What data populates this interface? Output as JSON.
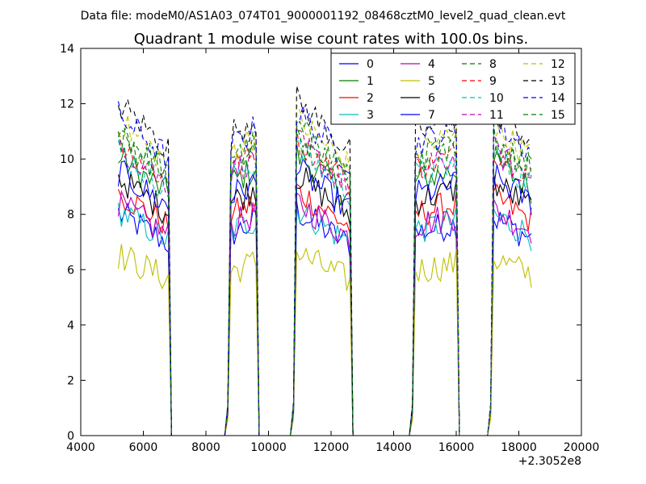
{
  "chart_data": {
    "type": "line",
    "suptitle": "Data file: modeM0/AS1A03_074T01_9000001192_08468cztM0_level2_quad_clean.evt",
    "title": "Quadrant 1 module wise count rates with 100.0s bins.",
    "xlabel": "",
    "ylabel": "",
    "x_offset_label": "+2.3052e8",
    "xlim": [
      4000,
      20000
    ],
    "ylim": [
      0,
      14
    ],
    "x_ticks": [
      4000,
      6000,
      8000,
      10000,
      12000,
      14000,
      16000,
      18000,
      20000
    ],
    "y_ticks": [
      0,
      2,
      4,
      6,
      8,
      10,
      12,
      14
    ],
    "grid": false,
    "legend_position": "top-right",
    "series": [
      {
        "name": "0",
        "color": "#0000ff",
        "dash": "solid",
        "base": 7.5
      },
      {
        "name": "1",
        "color": "#008000",
        "dash": "solid",
        "base": 9.4
      },
      {
        "name": "2",
        "color": "#ff0000",
        "dash": "solid",
        "base": 8.2
      },
      {
        "name": "3",
        "color": "#00bfbf",
        "dash": "solid",
        "base": 7.6
      },
      {
        "name": "4",
        "color": "#bf00bf",
        "dash": "solid",
        "base": 7.8
      },
      {
        "name": "5",
        "color": "#bfbf00",
        "dash": "solid",
        "base": 6.1
      },
      {
        "name": "6",
        "color": "#000000",
        "dash": "solid",
        "base": 8.7
      },
      {
        "name": "7",
        "color": "#0000ff",
        "dash": "solid",
        "base": 8.9
      },
      {
        "name": "8",
        "color": "#008000",
        "dash": "dashed",
        "base": 10.3
      },
      {
        "name": "9",
        "color": "#ff0000",
        "dash": "dashed",
        "base": 9.9
      },
      {
        "name": "10",
        "color": "#00bfbf",
        "dash": "dashed",
        "base": 9.6
      },
      {
        "name": "11",
        "color": "#bf00bf",
        "dash": "dashed",
        "base": 9.8
      },
      {
        "name": "12",
        "color": "#bfbf00",
        "dash": "dashed",
        "base": 10.6
      },
      {
        "name": "13",
        "color": "#000000",
        "dash": "dashed",
        "base": 11.2
      },
      {
        "name": "14",
        "color": "#0000ff",
        "dash": "dashed",
        "base": 10.8
      },
      {
        "name": "15",
        "color": "#008000",
        "dash": "dashed",
        "base": 10.1
      }
    ],
    "segments": [
      {
        "on": [
          5200,
          6800
        ],
        "trend": 1.3
      },
      {
        "on": [
          8800,
          9600
        ],
        "trend": -0.5
      },
      {
        "on": [
          10900,
          12600
        ],
        "trend": 1.5
      },
      {
        "on": [
          14700,
          16000
        ],
        "trend": -0.4
      },
      {
        "on": [
          17200,
          18400
        ],
        "trend": 0.9
      }
    ],
    "gap_value": 0
  }
}
